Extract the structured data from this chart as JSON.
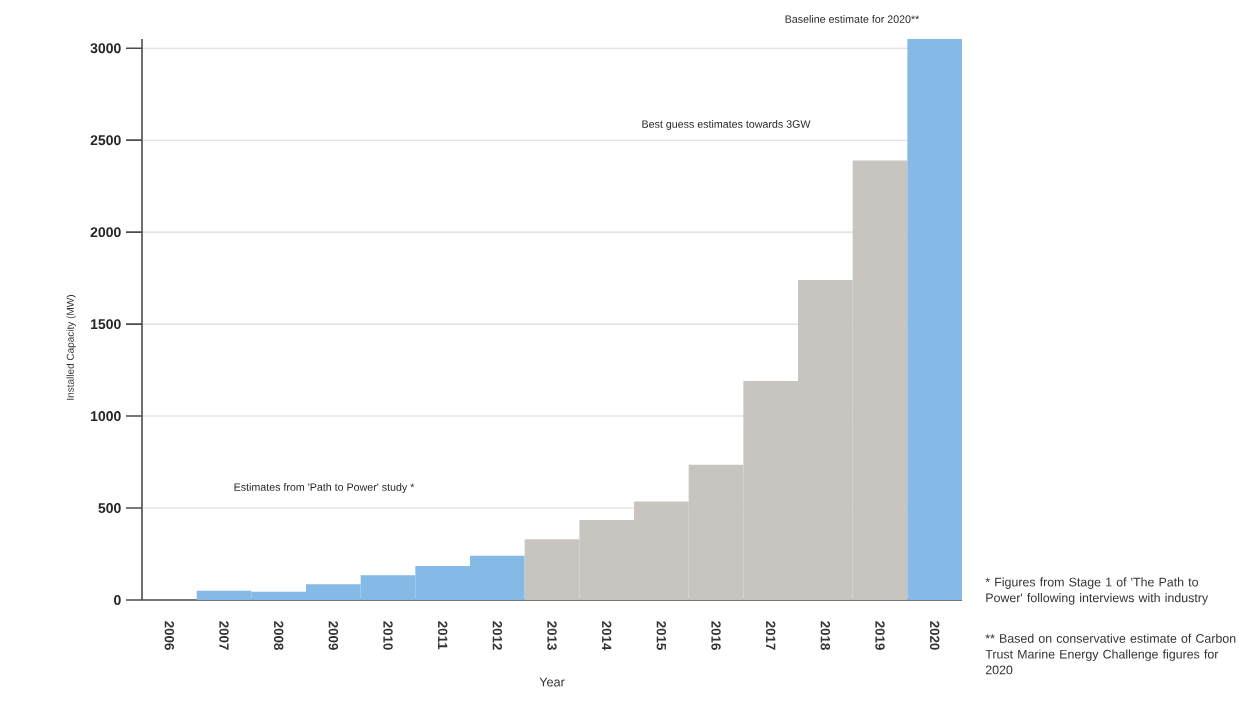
{
  "chart_data": {
    "type": "bar",
    "xlabel": "Year",
    "ylabel": "Installed Capacity (MW)",
    "categories": [
      "2006",
      "2007",
      "2008",
      "2009",
      "2010",
      "2011",
      "2012",
      "2013",
      "2014",
      "2015",
      "2016",
      "2017",
      "2018",
      "2019",
      "2020"
    ],
    "values": [
      0,
      50,
      45,
      85,
      135,
      185,
      240,
      330,
      435,
      535,
      735,
      1190,
      1740,
      2390,
      3050
    ],
    "colors": [
      "#85b9e6",
      "#85b9e6",
      "#85b9e6",
      "#85b9e6",
      "#85b9e6",
      "#85b9e6",
      "#85b9e6",
      "#c8c5c1",
      "#c8c5c1",
      "#c8c5c1",
      "#c8c5c1",
      "#c8c5c1",
      "#c8c5c1",
      "#c8c5c1",
      "#85b9e6"
    ],
    "ylim": [
      0,
      3050
    ],
    "yticks": [
      0,
      500,
      1000,
      1500,
      2000,
      2500,
      3000
    ],
    "grid": "y",
    "annotations": [
      "Estimates from 'Path to Power' study *",
      "Best  guess estimates towards 3GW",
      "Baseline estimate for 2020**",
      "* Figures from Stage 1 of 'The Path to Power' following interviews with industry",
      "** Based on conservative estimate of Carbon Trust Marine Energy Challenge figures for 2020"
    ]
  }
}
